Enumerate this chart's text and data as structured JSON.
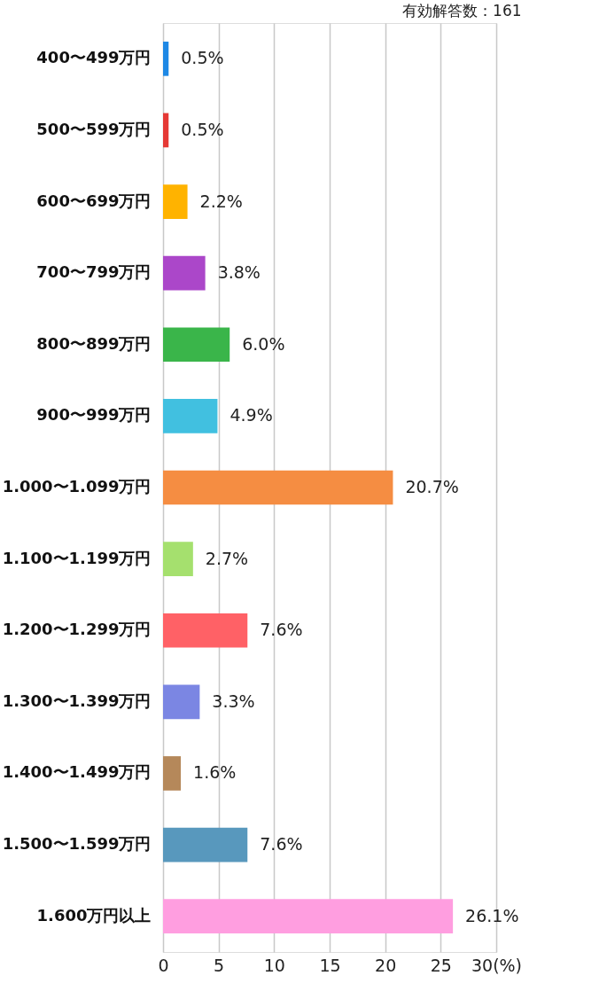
{
  "chart_data": {
    "type": "bar",
    "orientation": "horizontal",
    "annotations": [
      "有効解答数：161"
    ],
    "categories": [
      "400〜499万円",
      "500〜599万円",
      "600〜699万円",
      "700〜799万円",
      "800〜899万円",
      "900〜999万円",
      "1.000〜1.099万円",
      "1.100〜1.199万円",
      "1.200〜1.299万円",
      "1.300〜1.399万円",
      "1.400〜1.499万円",
      "1.500〜1.599万円",
      "1.600万円以上"
    ],
    "values": [
      0.5,
      0.5,
      2.2,
      3.8,
      6.0,
      4.9,
      20.7,
      2.7,
      7.6,
      3.3,
      1.6,
      7.6,
      26.1
    ],
    "value_labels": [
      "0.5%",
      "0.5%",
      "2.2%",
      "3.8%",
      "6.0%",
      "4.9%",
      "20.7%",
      "2.7%",
      "7.6%",
      "3.3%",
      "1.6%",
      "7.6%",
      "26.1%"
    ],
    "colors": [
      "#1e88e5",
      "#e53935",
      "#ffb300",
      "#ab47c9",
      "#3ab54a",
      "#41c0e0",
      "#f58d42",
      "#a5e06e",
      "#ff6166",
      "#7b86e3",
      "#b5885a",
      "#5898bd",
      "#ff9ee0"
    ],
    "xlim": [
      0,
      30
    ],
    "xticks": [
      0,
      5,
      10,
      15,
      20,
      25,
      {
        "value": 30,
        "label": "30(%)"
      }
    ],
    "grid": "x"
  }
}
